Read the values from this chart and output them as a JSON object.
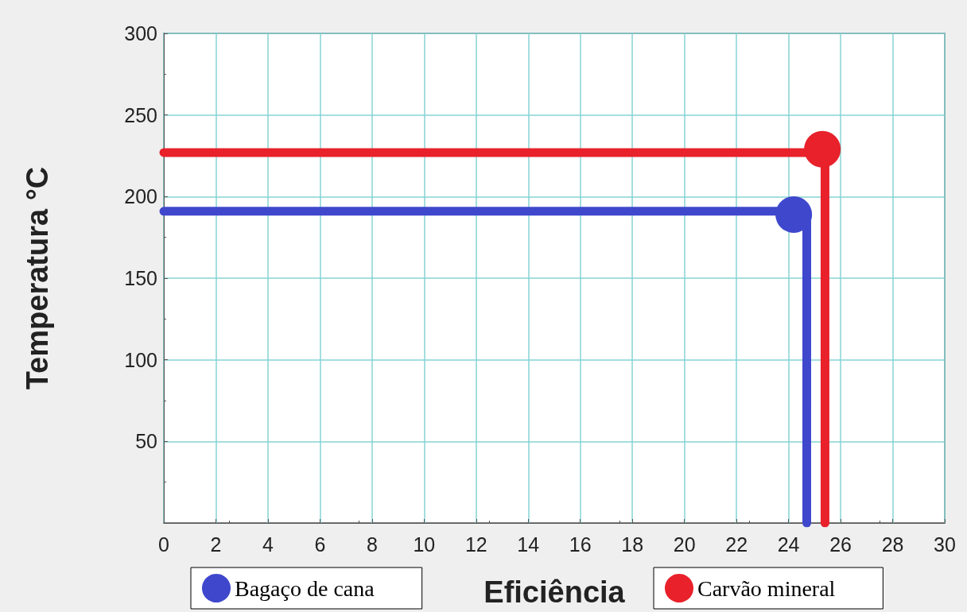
{
  "chart_data": {
    "type": "line",
    "xlabel": "Eficiência",
    "ylabel": "Temperatura °C",
    "xlim": [
      0,
      30
    ],
    "xticks": [
      0,
      2,
      4,
      6,
      8,
      10,
      12,
      14,
      16,
      18,
      20,
      22,
      24,
      26,
      28,
      30
    ],
    "ylim": [
      0,
      300
    ],
    "yticks": [
      50,
      100,
      150,
      200,
      250,
      300
    ],
    "grid": true,
    "legend": "bottom",
    "marker": "circle",
    "series": [
      {
        "marker": "none",
        "color": "#3f48cc",
        "x": [
          0,
          24.7,
          24.7
        ],
        "values": [
          191,
          191,
          0
        ]
      },
      {
        "type": "scatter",
        "name": "Bagaço de cana",
        "color": "#3f48cc",
        "x": [
          24.2
        ],
        "values": [
          189
        ]
      },
      {
        "marker": "none",
        "color": "#e8212b",
        "x": [
          0,
          25.4,
          25.4
        ],
        "values": [
          227,
          227,
          0
        ]
      },
      {
        "type": "scatter",
        "name": "Carvão mineral",
        "color": "#e8212b",
        "x": [
          25.3
        ],
        "values": [
          229
        ]
      }
    ]
  }
}
